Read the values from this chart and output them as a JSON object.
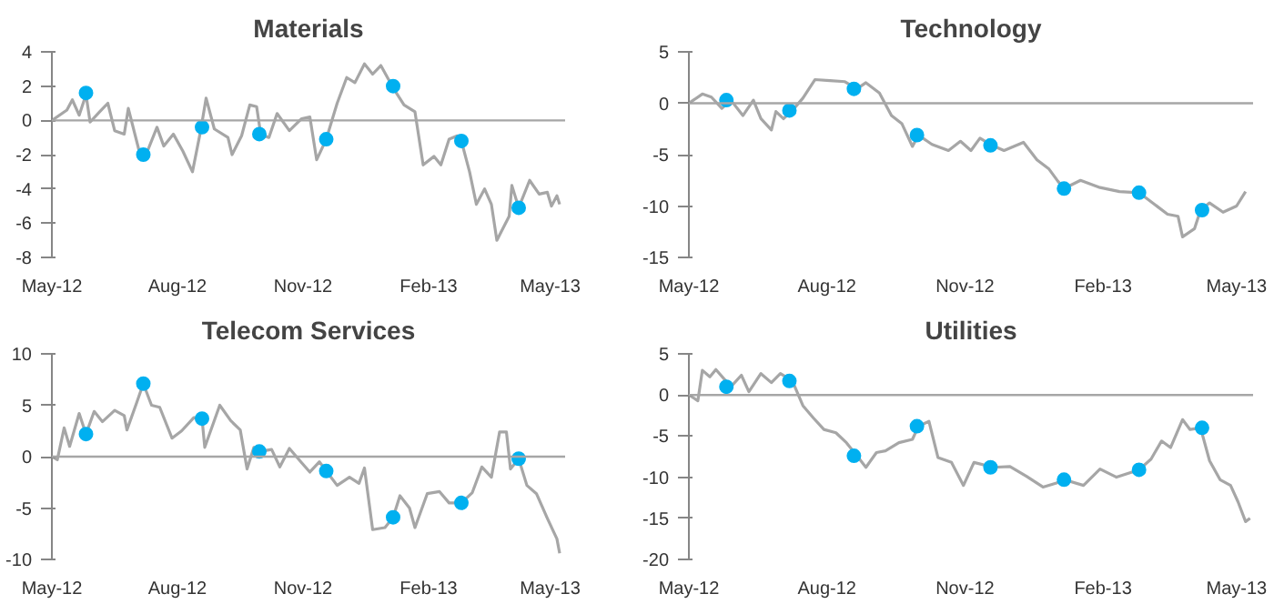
{
  "chart_data": [
    {
      "type": "line",
      "title": "Materials",
      "xlim": [
        "2012-05-01",
        "2013-05-12"
      ],
      "xticks": [
        {
          "value": "2012-05-01",
          "label": "May-12"
        },
        {
          "value": "2012-08-01",
          "label": "Aug-12"
        },
        {
          "value": "2012-11-01",
          "label": "Nov-12"
        },
        {
          "value": "2013-02-01",
          "label": "Feb-13"
        },
        {
          "value": "2013-05-01",
          "label": "May-13"
        }
      ],
      "ylim": [
        -8,
        4
      ],
      "yticks": [
        -8,
        -6,
        -4,
        -2,
        0,
        2,
        4
      ],
      "grid": false,
      "ref_lines": [
        {
          "axis": "y",
          "value": 0,
          "color": "#a6a6a6"
        }
      ],
      "series": [
        {
          "type": "line",
          "color": "#a6a6a6",
          "line_style": "solid",
          "x": [
            "2012-05-01",
            "2012-05-12",
            "2012-05-16",
            "2012-05-21",
            "2012-05-26",
            "2012-05-29",
            "2012-06-05",
            "2012-06-11",
            "2012-06-16",
            "2012-06-23",
            "2012-06-26",
            "2012-07-04",
            "2012-07-09",
            "2012-07-17",
            "2012-07-22",
            "2012-07-29",
            "2012-08-05",
            "2012-08-12",
            "2012-08-18",
            "2012-08-22",
            "2012-08-28",
            "2012-09-07",
            "2012-09-10",
            "2012-09-17",
            "2012-09-23",
            "2012-09-28",
            "2012-10-01",
            "2012-10-07",
            "2012-10-13",
            "2012-10-22",
            "2012-10-31",
            "2012-11-06",
            "2012-11-11",
            "2012-11-18",
            "2012-11-26",
            "2012-12-03",
            "2012-12-09",
            "2012-12-16",
            "2012-12-22",
            "2012-12-28",
            "2013-01-06",
            "2013-01-14",
            "2013-01-22",
            "2013-01-28",
            "2013-02-05",
            "2013-02-10",
            "2013-02-16",
            "2013-02-22",
            "2013-02-25",
            "2013-03-03",
            "2013-03-08",
            "2013-03-14",
            "2013-03-19",
            "2013-03-23",
            "2013-04-01",
            "2013-04-03",
            "2013-04-08",
            "2013-04-16",
            "2013-04-23",
            "2013-04-29",
            "2013-05-02",
            "2013-05-06",
            "2013-05-08"
          ],
          "values": [
            0,
            0.6,
            1.2,
            0.3,
            1.5,
            -0.1,
            0.5,
            1.0,
            -0.6,
            -0.8,
            0.7,
            -1.8,
            -2.0,
            -0.4,
            -1.5,
            -0.8,
            -1.8,
            -3.0,
            -0.6,
            1.3,
            -0.5,
            -1.0,
            -2.0,
            -0.9,
            0.9,
            0.8,
            -0.8,
            -1.0,
            0.4,
            -0.6,
            0.1,
            0.2,
            -2.3,
            -1.1,
            1.0,
            2.5,
            2.2,
            3.3,
            2.7,
            3.2,
            1.9,
            0.9,
            0.5,
            -2.6,
            -2.1,
            -2.6,
            -1.1,
            -0.9,
            -1.2,
            -3.0,
            -4.9,
            -4.0,
            -4.9,
            -7.0,
            -5.6,
            -3.8,
            -5.1,
            -3.5,
            -4.3,
            -4.2,
            -5.0,
            -4.4,
            -4.9
          ]
        },
        {
          "type": "scatter",
          "color": "#00b0f0",
          "marker": "circle",
          "x": [
            "2012-05-26",
            "2012-07-07",
            "2012-08-19",
            "2012-09-30",
            "2012-11-18",
            "2013-01-06",
            "2013-02-25",
            "2013-04-08"
          ],
          "values": [
            1.6,
            -2.0,
            -0.4,
            -0.8,
            -1.1,
            2.0,
            -1.2,
            -5.1
          ]
        }
      ]
    },
    {
      "type": "line",
      "title": "Technology",
      "xlim": [
        "2012-05-01",
        "2013-05-12"
      ],
      "xticks": [
        {
          "value": "2012-05-01",
          "label": "May-12"
        },
        {
          "value": "2012-08-01",
          "label": "Aug-12"
        },
        {
          "value": "2012-11-01",
          "label": "Nov-12"
        },
        {
          "value": "2013-02-01",
          "label": "Feb-13"
        },
        {
          "value": "2013-05-01",
          "label": "May-13"
        }
      ],
      "ylim": [
        -15,
        5
      ],
      "yticks": [
        -15,
        -10,
        -5,
        0,
        5
      ],
      "grid": false,
      "ref_lines": [
        {
          "axis": "y",
          "value": 0,
          "color": "#a6a6a6"
        }
      ],
      "series": [
        {
          "type": "line",
          "color": "#a6a6a6",
          "line_style": "solid",
          "x": [
            "2012-05-01",
            "2012-05-10",
            "2012-05-16",
            "2012-05-23",
            "2012-05-29",
            "2012-06-06",
            "2012-06-13",
            "2012-06-18",
            "2012-06-25",
            "2012-06-28",
            "2012-07-03",
            "2012-07-09",
            "2012-07-16",
            "2012-07-24",
            "2012-08-03",
            "2012-08-13",
            "2012-08-21",
            "2012-08-27",
            "2012-09-05",
            "2012-09-13",
            "2012-09-20",
            "2012-09-27",
            "2012-10-01",
            "2012-10-10",
            "2012-10-21",
            "2012-10-29",
            "2012-11-05",
            "2012-11-11",
            "2012-11-19",
            "2012-11-27",
            "2012-12-10",
            "2012-12-19",
            "2012-12-27",
            "2013-01-02",
            "2013-01-06",
            "2013-01-17",
            "2013-01-30",
            "2013-02-12",
            "2013-02-25",
            "2013-03-07",
            "2013-03-16",
            "2013-03-23",
            "2013-03-26",
            "2013-04-03",
            "2013-04-07",
            "2013-04-13",
            "2013-04-22",
            "2013-05-01",
            "2013-05-07"
          ],
          "values": [
            0,
            0.9,
            0.6,
            -0.5,
            0.3,
            -1.2,
            0.3,
            -1.5,
            -2.6,
            -0.8,
            -1.5,
            -0.7,
            0.5,
            2.3,
            2.2,
            2.1,
            1.4,
            2.0,
            1.0,
            -1.2,
            -2.0,
            -4.2,
            -3.1,
            -4.0,
            -4.6,
            -3.7,
            -4.6,
            -3.4,
            -4.1,
            -4.6,
            -3.8,
            -5.5,
            -6.4,
            -7.6,
            -8.3,
            -7.5,
            -8.2,
            -8.6,
            -8.7,
            -9.8,
            -10.8,
            -11.0,
            -13.0,
            -12.2,
            -10.4,
            -9.7,
            -10.6,
            -10.0,
            -8.6
          ]
        },
        {
          "type": "scatter",
          "color": "#00b0f0",
          "marker": "circle",
          "x": [
            "2012-05-26",
            "2012-07-07",
            "2012-08-19",
            "2012-09-30",
            "2012-11-18",
            "2013-01-06",
            "2013-02-25",
            "2013-04-08"
          ],
          "values": [
            0.3,
            -0.7,
            1.4,
            -3.1,
            -4.1,
            -8.3,
            -8.7,
            -10.4
          ]
        }
      ]
    },
    {
      "type": "line",
      "title": "Telecom Services",
      "xlim": [
        "2012-05-01",
        "2013-05-12"
      ],
      "xticks": [
        {
          "value": "2012-05-01",
          "label": "May-12"
        },
        {
          "value": "2012-08-01",
          "label": "Aug-12"
        },
        {
          "value": "2012-11-01",
          "label": "Nov-12"
        },
        {
          "value": "2013-02-01",
          "label": "Feb-13"
        },
        {
          "value": "2013-05-01",
          "label": "May-13"
        }
      ],
      "ylim": [
        -10,
        10
      ],
      "yticks": [
        -10,
        -5,
        0,
        5,
        10
      ],
      "grid": false,
      "ref_lines": [
        {
          "axis": "y",
          "value": 0,
          "color": "#a6a6a6"
        }
      ],
      "series": [
        {
          "type": "line",
          "color": "#a6a6a6",
          "line_style": "solid",
          "x": [
            "2012-05-01",
            "2012-05-05",
            "2012-05-10",
            "2012-05-14",
            "2012-05-21",
            "2012-05-26",
            "2012-06-01",
            "2012-06-07",
            "2012-06-16",
            "2012-06-23",
            "2012-06-25",
            "2012-07-02",
            "2012-07-07",
            "2012-07-13",
            "2012-07-19",
            "2012-07-28",
            "2012-08-04",
            "2012-08-13",
            "2012-08-19",
            "2012-08-21",
            "2012-09-01",
            "2012-09-09",
            "2012-09-16",
            "2012-09-21",
            "2012-09-26",
            "2012-09-30",
            "2012-10-09",
            "2012-10-15",
            "2012-10-22",
            "2012-10-31",
            "2012-11-06",
            "2012-11-13",
            "2012-11-18",
            "2012-11-26",
            "2012-12-05",
            "2012-12-12",
            "2012-12-16",
            "2012-12-22",
            "2012-12-31",
            "2013-01-06",
            "2013-01-11",
            "2013-01-18",
            "2013-01-22",
            "2013-01-31",
            "2013-02-09",
            "2013-02-16",
            "2013-02-25",
            "2013-03-05",
            "2013-03-12",
            "2013-03-19",
            "2013-03-25",
            "2013-03-30",
            "2013-04-02",
            "2013-04-08",
            "2013-04-14",
            "2013-04-21",
            "2013-04-29",
            "2013-05-06",
            "2013-05-08"
          ],
          "values": [
            0,
            -0.3,
            2.8,
            1.0,
            4.2,
            2.2,
            4.4,
            3.4,
            4.5,
            4.0,
            2.6,
            5.2,
            7.1,
            5.0,
            4.8,
            1.8,
            2.5,
            3.8,
            3.7,
            0.9,
            5.0,
            3.5,
            2.6,
            -1.2,
            0.9,
            0.5,
            0.7,
            -1.0,
            0.8,
            -0.6,
            -1.5,
            -0.5,
            -1.4,
            -2.8,
            -2.0,
            -2.6,
            -1.1,
            -7.1,
            -6.9,
            -5.9,
            -3.8,
            -5.0,
            -6.9,
            -3.6,
            -3.4,
            -4.5,
            -4.5,
            -3.5,
            -1.0,
            -2.0,
            2.4,
            2.4,
            -1.2,
            -0.2,
            -2.8,
            -3.6,
            -6.0,
            -8.0,
            -9.4
          ]
        },
        {
          "type": "scatter",
          "color": "#00b0f0",
          "marker": "circle",
          "x": [
            "2012-05-26",
            "2012-07-07",
            "2012-08-19",
            "2012-09-30",
            "2012-11-18",
            "2013-01-06",
            "2013-02-25",
            "2013-04-08"
          ],
          "values": [
            2.2,
            7.1,
            3.7,
            0.5,
            -1.4,
            -5.9,
            -4.5,
            -0.2
          ]
        }
      ]
    },
    {
      "type": "line",
      "title": "Utilities",
      "xlim": [
        "2012-05-01",
        "2013-05-12"
      ],
      "xticks": [
        {
          "value": "2012-05-01",
          "label": "May-12"
        },
        {
          "value": "2012-08-01",
          "label": "Aug-12"
        },
        {
          "value": "2012-11-01",
          "label": "Nov-12"
        },
        {
          "value": "2013-02-01",
          "label": "Feb-13"
        },
        {
          "value": "2013-05-01",
          "label": "May-13"
        }
      ],
      "ylim": [
        -20,
        5
      ],
      "yticks": [
        -20,
        -15,
        -10,
        -5,
        0,
        5
      ],
      "grid": false,
      "ref_lines": [
        {
          "axis": "y",
          "value": 0,
          "color": "#a6a6a6"
        }
      ],
      "series": [
        {
          "type": "line",
          "color": "#a6a6a6",
          "line_style": "solid",
          "x": [
            "2012-05-01",
            "2012-05-07",
            "2012-05-10",
            "2012-05-15",
            "2012-05-19",
            "2012-05-29",
            "2012-06-05",
            "2012-06-10",
            "2012-06-18",
            "2012-06-25",
            "2012-07-01",
            "2012-07-09",
            "2012-07-16",
            "2012-07-23",
            "2012-07-30",
            "2012-08-07",
            "2012-08-14",
            "2012-08-21",
            "2012-08-27",
            "2012-09-03",
            "2012-09-09",
            "2012-09-18",
            "2012-09-27",
            "2012-10-01",
            "2012-10-08",
            "2012-10-14",
            "2012-10-23",
            "2012-10-31",
            "2012-11-07",
            "2012-11-20",
            "2012-12-01",
            "2012-12-12",
            "2012-12-23",
            "2013-01-01",
            "2013-01-06",
            "2013-01-19",
            "2013-01-30",
            "2013-02-10",
            "2013-02-25",
            "2013-03-05",
            "2013-03-12",
            "2013-03-18",
            "2013-03-26",
            "2013-03-31",
            "2013-04-07",
            "2013-04-13",
            "2013-04-20",
            "2013-04-27",
            "2013-05-02",
            "2013-05-07",
            "2013-05-10"
          ],
          "values": [
            0,
            -0.7,
            3.0,
            2.2,
            3.1,
            1.0,
            2.4,
            0.4,
            2.6,
            1.5,
            2.6,
            1.7,
            -1.3,
            -2.8,
            -4.2,
            -4.6,
            -5.8,
            -7.4,
            -8.8,
            -7.0,
            -6.8,
            -5.8,
            -5.4,
            -3.8,
            -3.2,
            -7.6,
            -8.2,
            -11.0,
            -8.2,
            -8.8,
            -8.7,
            -9.9,
            -11.2,
            -10.7,
            -10.3,
            -11.0,
            -9.0,
            -10.0,
            -9.1,
            -7.8,
            -5.6,
            -6.4,
            -3.0,
            -4.2,
            -4.0,
            -8.0,
            -10.3,
            -11.0,
            -13.0,
            -15.4,
            -15.0
          ]
        },
        {
          "type": "scatter",
          "color": "#00b0f0",
          "marker": "circle",
          "x": [
            "2012-05-26",
            "2012-07-07",
            "2012-08-19",
            "2012-09-30",
            "2012-11-18",
            "2013-01-06",
            "2013-02-25",
            "2013-04-08"
          ],
          "values": [
            1.0,
            1.7,
            -7.4,
            -3.8,
            -8.8,
            -10.3,
            -9.1,
            -4.0
          ]
        }
      ]
    }
  ]
}
